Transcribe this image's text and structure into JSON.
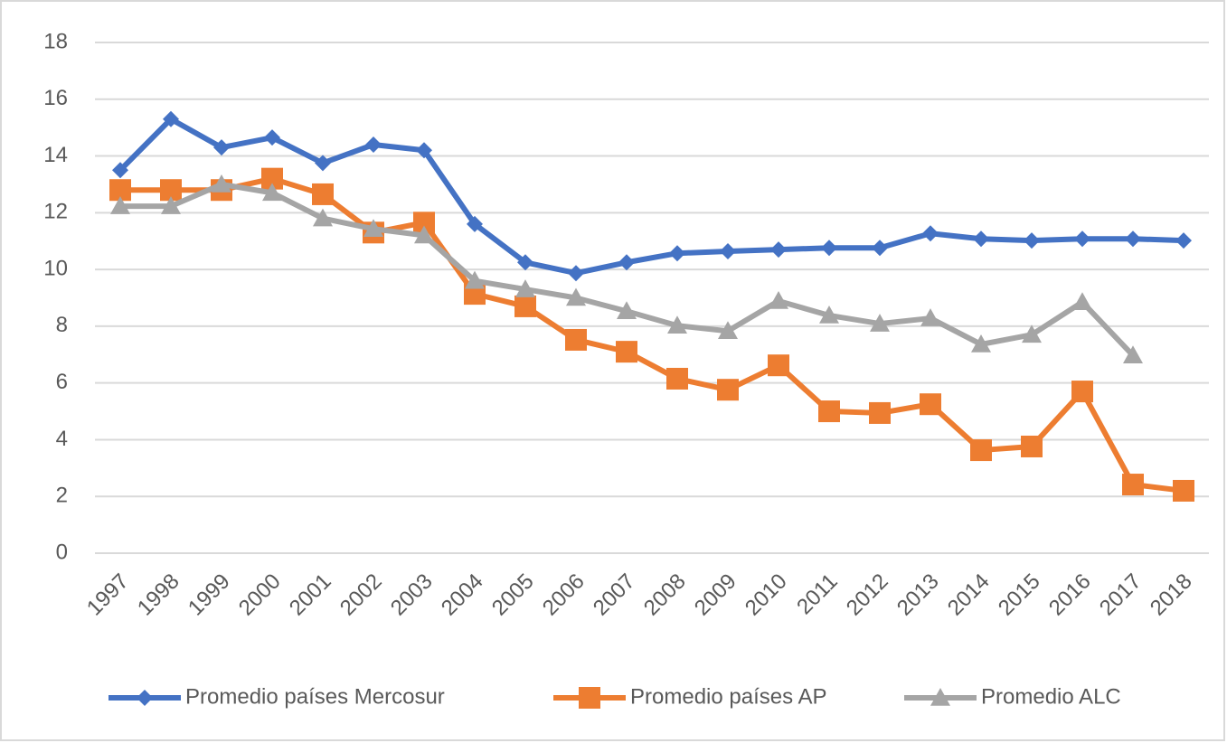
{
  "chart_data": {
    "type": "line",
    "categories": [
      "1997",
      "1998",
      "1999",
      "2000",
      "2001",
      "2002",
      "2003",
      "2004",
      "2005",
      "2006",
      "2007",
      "2008",
      "2009",
      "2010",
      "2011",
      "2012",
      "2013",
      "2014",
      "2015",
      "2016",
      "2017",
      "2018"
    ],
    "series": [
      {
        "name": "Promedio países Mercosur",
        "color": "#4472c4",
        "marker": "diamond",
        "values": [
          13.5,
          15.3,
          14.3,
          14.65,
          13.75,
          14.4,
          14.2,
          11.6,
          10.25,
          9.87,
          10.25,
          10.57,
          10.64,
          10.7,
          10.76,
          10.76,
          11.27,
          11.08,
          11.02,
          11.08,
          11.08,
          11.02
        ]
      },
      {
        "name": "Promedio países AP",
        "color": "#ed7d31",
        "marker": "square",
        "values": [
          12.8,
          12.8,
          12.8,
          13.2,
          12.65,
          11.3,
          11.65,
          9.14,
          8.7,
          7.52,
          7.1,
          6.15,
          5.76,
          6.62,
          5.0,
          4.94,
          5.25,
          3.63,
          3.76,
          5.7,
          2.42,
          2.2
        ]
      },
      {
        "name": "Promedio ALC",
        "color": "#a5a5a5",
        "marker": "triangle",
        "values": [
          12.23,
          12.23,
          13.0,
          12.7,
          11.8,
          11.43,
          11.2,
          9.6,
          9.3,
          9.0,
          8.53,
          8.02,
          7.83,
          8.89,
          8.38,
          8.09,
          8.28,
          7.36,
          7.7,
          8.85,
          6.97,
          null
        ]
      }
    ],
    "ylim": [
      0,
      18
    ],
    "yticks": [
      0,
      2,
      4,
      6,
      8,
      10,
      12,
      14,
      16,
      18
    ],
    "grid": true,
    "legend": "bottom"
  }
}
